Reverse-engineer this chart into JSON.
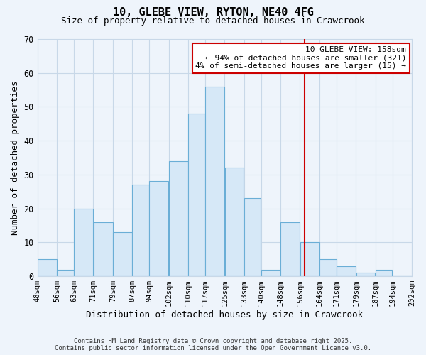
{
  "title": "10, GLEBE VIEW, RYTON, NE40 4FG",
  "subtitle": "Size of property relative to detached houses in Crawcrook",
  "xlabel": "Distribution of detached houses by size in Crawcrook",
  "ylabel": "Number of detached properties",
  "bar_color": "#d6e8f7",
  "bar_edge_color": "#6aaed6",
  "background_color": "#eef4fb",
  "plot_bg_color": "#eef4fb",
  "bins": [
    48,
    56,
    63,
    71,
    79,
    87,
    94,
    102,
    110,
    117,
    125,
    133,
    140,
    148,
    156,
    164,
    171,
    179,
    187,
    194,
    202
  ],
  "counts": [
    5,
    2,
    20,
    16,
    13,
    27,
    28,
    34,
    48,
    56,
    32,
    23,
    2,
    16,
    10,
    5,
    3,
    1,
    2,
    0
  ],
  "tick_labels": [
    "48sqm",
    "56sqm",
    "63sqm",
    "71sqm",
    "79sqm",
    "87sqm",
    "94sqm",
    "102sqm",
    "110sqm",
    "117sqm",
    "125sqm",
    "133sqm",
    "140sqm",
    "148sqm",
    "156sqm",
    "164sqm",
    "171sqm",
    "179sqm",
    "187sqm",
    "194sqm",
    "202sqm"
  ],
  "ylim": [
    0,
    70
  ],
  "yticks": [
    0,
    10,
    20,
    30,
    40,
    50,
    60,
    70
  ],
  "vline_x": 158,
  "vline_color": "#cc0000",
  "annotation_title": "10 GLEBE VIEW: 158sqm",
  "annotation_line1": "← 94% of detached houses are smaller (321)",
  "annotation_line2": "4% of semi-detached houses are larger (15) →",
  "annotation_box_color": "#ffffff",
  "annotation_box_edge": "#cc0000",
  "footer1": "Contains HM Land Registry data © Crown copyright and database right 2025.",
  "footer2": "Contains public sector information licensed under the Open Government Licence v3.0.",
  "grid_color": "#c8d8e8",
  "title_fontsize": 11,
  "subtitle_fontsize": 9,
  "ylabel_fontsize": 9,
  "xlabel_fontsize": 9,
  "tick_fontsize": 7.5,
  "ytick_fontsize": 8.5,
  "footer_fontsize": 6.5,
  "annotation_fontsize": 8
}
